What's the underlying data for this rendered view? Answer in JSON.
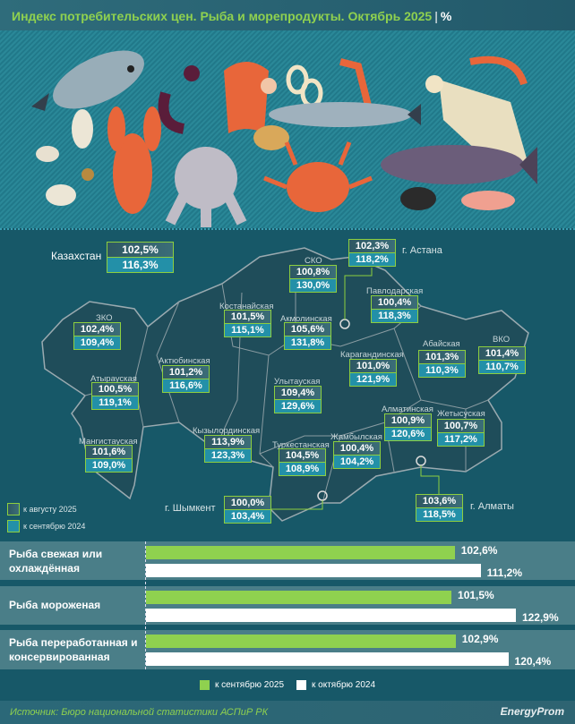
{
  "header": {
    "title": "Индекс потребительских цен. Рыба и морепродукты. Октябрь 2025",
    "unit": "%"
  },
  "map": {
    "legend": [
      "к августу 2025",
      "к сентябрю 2024"
    ],
    "country": {
      "name": "Казахстан",
      "v1": "102,5%",
      "v2": "116,3%"
    },
    "regions": [
      {
        "name": "ЗКО",
        "v1": "102,4%",
        "v2": "109,4%"
      },
      {
        "name": "Атырауская",
        "v1": "100,5%",
        "v2": "119,1%"
      },
      {
        "name": "Мангистауская",
        "v1": "101,6%",
        "v2": "109,0%"
      },
      {
        "name": "Актюбинская",
        "v1": "101,2%",
        "v2": "116,6%"
      },
      {
        "name": "Костанайская",
        "v1": "101,5%",
        "v2": "115,1%"
      },
      {
        "name": "Кызылординская",
        "v1": "113,9%",
        "v2": "123,3%"
      },
      {
        "name": "г. Шымкент",
        "v1": "100,0%",
        "v2": "103,4%"
      },
      {
        "name": "СКО",
        "v1": "100,8%",
        "v2": "130,0%"
      },
      {
        "name": "г. Астана",
        "v1": "102,3%",
        "v2": "118,2%"
      },
      {
        "name": "Павлодарская",
        "v1": "100,4%",
        "v2": "118,3%"
      },
      {
        "name": "Акмолинская",
        "v1": "105,6%",
        "v2": "131,8%"
      },
      {
        "name": "Карагандинская",
        "v1": "101,0%",
        "v2": "121,9%"
      },
      {
        "name": "Абайская",
        "v1": "101,3%",
        "v2": "110,3%"
      },
      {
        "name": "ВКО",
        "v1": "101,4%",
        "v2": "110,7%"
      },
      {
        "name": "Улытауская",
        "v1": "109,4%",
        "v2": "129,6%"
      },
      {
        "name": "Алматинская",
        "v1": "100,9%",
        "v2": "120,6%"
      },
      {
        "name": "Жетысуская",
        "v1": "100,7%",
        "v2": "117,2%"
      },
      {
        "name": "Туркестанская",
        "v1": "104,5%",
        "v2": "108,9%"
      },
      {
        "name": "Жамбылская",
        "v1": "100,4%",
        "v2": "104,2%"
      },
      {
        "name": "г. Алматы",
        "v1": "103,6%",
        "v2": "118,5%"
      }
    ]
  },
  "chart_data": {
    "type": "bar",
    "orientation": "horizontal",
    "categories": [
      "Рыба свежая или охлаждённая",
      "Рыба мороженая",
      "Рыба переработанная и консервированная"
    ],
    "series": [
      {
        "name": "к сентябрю 2025",
        "values": [
          102.6,
          101.5,
          102.9
        ],
        "labels": [
          "102,6%",
          "101,5%",
          "102,9%"
        ],
        "color": "#8fd14f"
      },
      {
        "name": "к октябрю 2024",
        "values": [
          111.2,
          122.9,
          120.4
        ],
        "labels": [
          "111,2%",
          "122,9%",
          "120,4%"
        ],
        "color": "#ffffff"
      }
    ],
    "xlim": [
      0,
      123
    ],
    "legend": "bottom"
  },
  "footer": {
    "source": "Источник: Бюро национальной статистики АСПиР РК",
    "logo": "EnergyProm"
  }
}
